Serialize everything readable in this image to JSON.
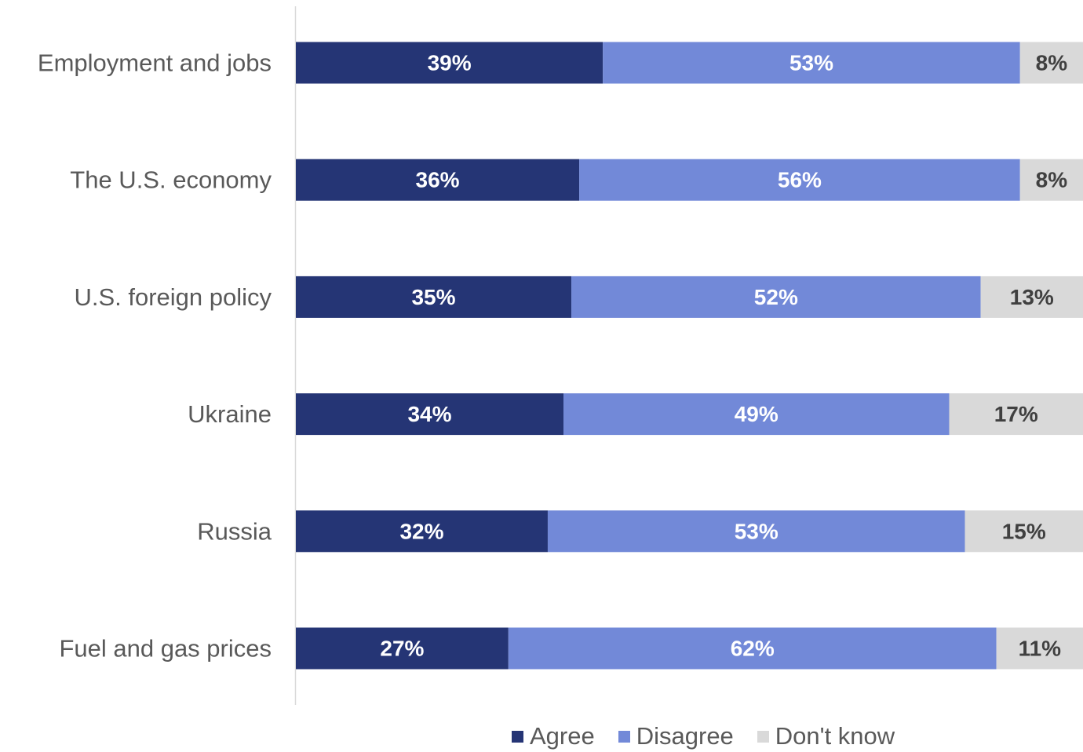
{
  "chart_data": {
    "type": "bar",
    "orientation": "horizontal",
    "stacked": true,
    "title": "",
    "categories": [
      "Employment and jobs",
      "The U.S. economy",
      "U.S. foreign policy",
      "Ukraine",
      "Russia",
      "Fuel and gas prices"
    ],
    "series": [
      {
        "name": "Agree",
        "color": "#253575",
        "label_color": "#ffffff",
        "values": [
          39,
          36,
          35,
          34,
          32,
          27
        ],
        "labels": [
          "39%",
          "36%",
          "35%",
          "34%",
          "32%",
          "27%"
        ]
      },
      {
        "name": "Disagree",
        "color": "#7289d8",
        "label_color": "#ffffff",
        "values": [
          53,
          56,
          52,
          49,
          53,
          62
        ],
        "labels": [
          "53%",
          "56%",
          "52%",
          "49%",
          "53%",
          "62%"
        ]
      },
      {
        "name": "Don't know",
        "color": "#d9d9d9",
        "label_color": "#404040",
        "values": [
          8,
          8,
          13,
          17,
          15,
          11
        ],
        "labels": [
          "8%",
          "8%",
          "13%",
          "17%",
          "15%",
          "11%"
        ]
      }
    ],
    "xlim": [
      0,
      100
    ],
    "grid": false,
    "legend_position": "bottom"
  }
}
